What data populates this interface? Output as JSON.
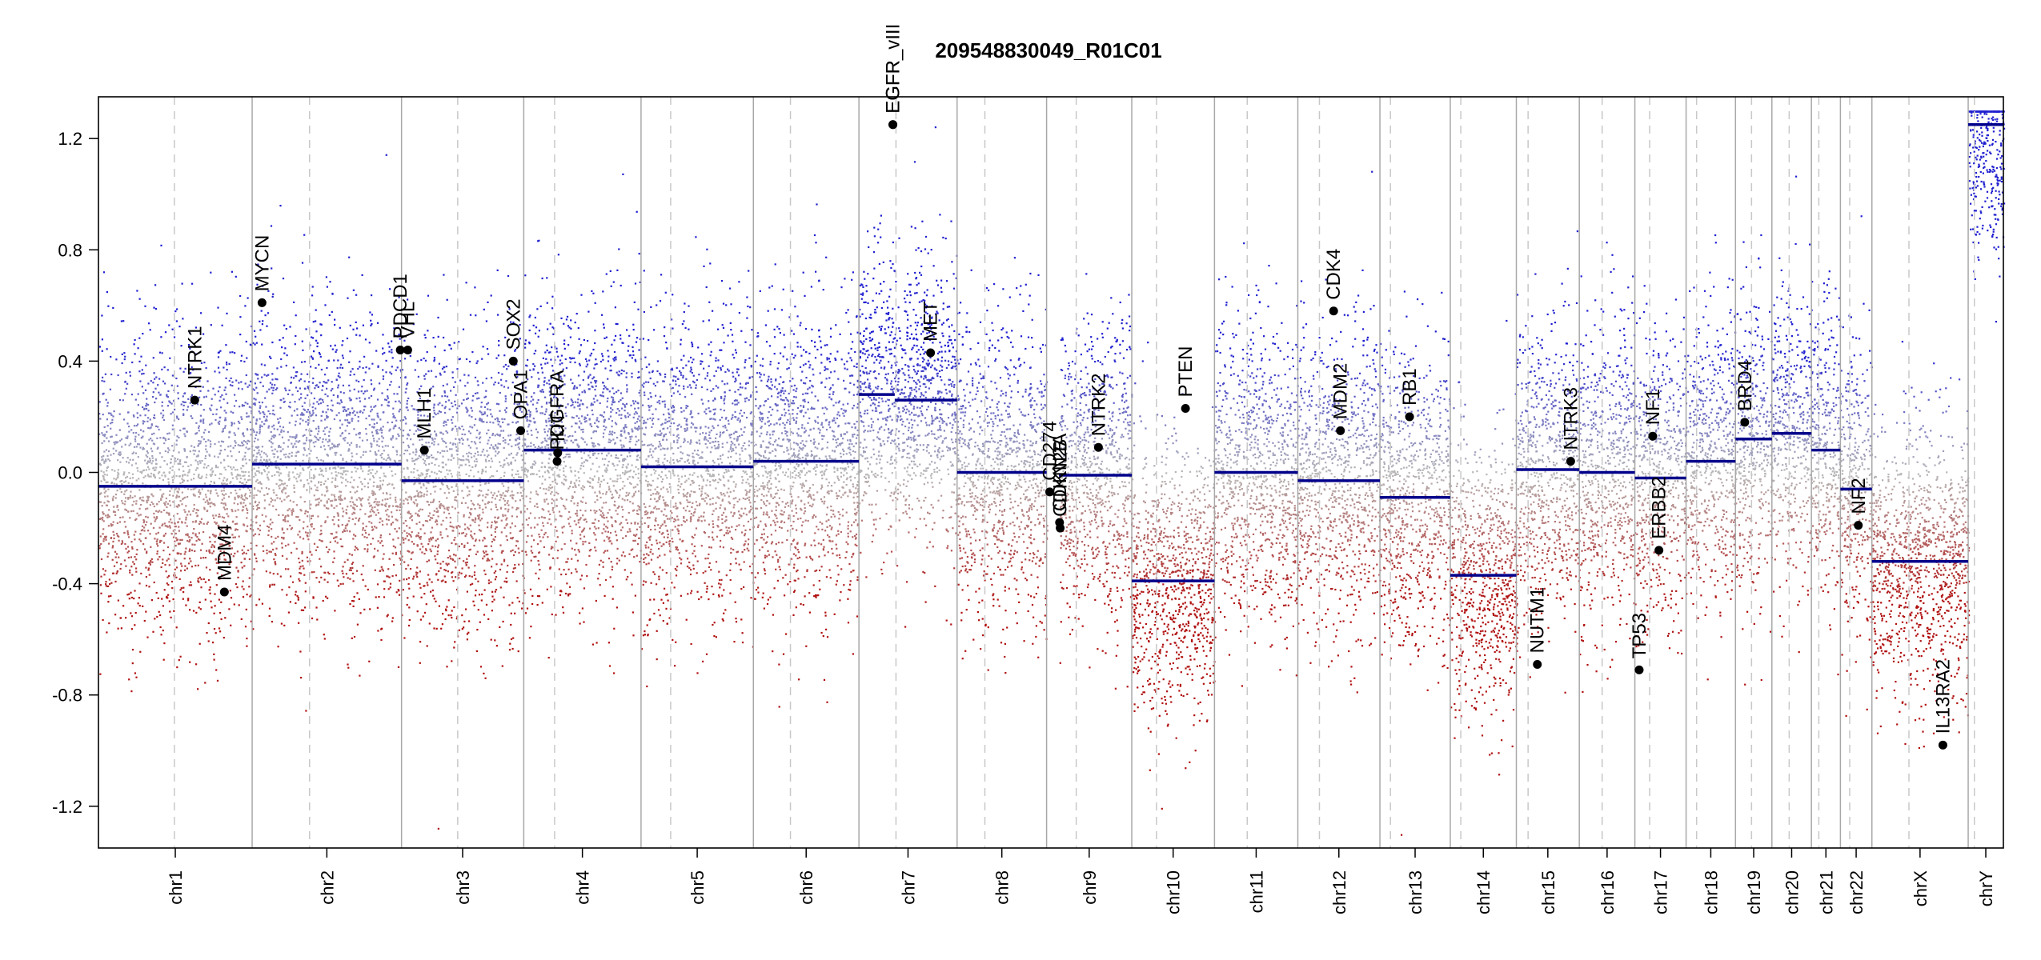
{
  "chart_data": {
    "type": "scatter",
    "title": "209548830049_R01C01",
    "xlabel": "",
    "ylabel": "",
    "ylim": [
      -1.35,
      1.35
    ],
    "yticks": [
      1.2,
      0.8,
      0.4,
      0.0,
      -0.4,
      -0.8,
      -1.2
    ],
    "ytick_labels": [
      "1.2",
      "0.8",
      "0.4",
      "0.0",
      "-0.4",
      "-0.8",
      "-1.2"
    ],
    "grid": false,
    "chromosomes": [
      {
        "name": "chr1",
        "length": 249,
        "centromere": 123
      },
      {
        "name": "chr2",
        "length": 242,
        "centromere": 93
      },
      {
        "name": "chr3",
        "length": 198,
        "centromere": 91
      },
      {
        "name": "chr4",
        "length": 190,
        "centromere": 50
      },
      {
        "name": "chr5",
        "length": 182,
        "centromere": 48
      },
      {
        "name": "chr6",
        "length": 171,
        "centromere": 60
      },
      {
        "name": "chr7",
        "length": 159,
        "centromere": 60
      },
      {
        "name": "chr8",
        "length": 145,
        "centromere": 45
      },
      {
        "name": "chr9",
        "length": 138,
        "centromere": 48
      },
      {
        "name": "chr10",
        "length": 134,
        "centromere": 40
      },
      {
        "name": "chr11",
        "length": 135,
        "centromere": 53
      },
      {
        "name": "chr12",
        "length": 133,
        "centromere": 35
      },
      {
        "name": "chr13",
        "length": 114,
        "centromere": 17
      },
      {
        "name": "chr14",
        "length": 107,
        "centromere": 17
      },
      {
        "name": "chr15",
        "length": 102,
        "centromere": 19
      },
      {
        "name": "chr16",
        "length": 90,
        "centromere": 37
      },
      {
        "name": "chr17",
        "length": 83,
        "centromere": 24
      },
      {
        "name": "chr18",
        "length": 80,
        "centromere": 17
      },
      {
        "name": "chr19",
        "length": 59,
        "centromere": 26
      },
      {
        "name": "chr20",
        "length": 64,
        "centromere": 28
      },
      {
        "name": "chr21",
        "length": 47,
        "centromere": 12
      },
      {
        "name": "chr22",
        "length": 51,
        "centromere": 15
      },
      {
        "name": "chrX",
        "length": 156,
        "centromere": 60
      },
      {
        "name": "chrY",
        "length": 57,
        "centromere": 10
      }
    ],
    "segments": [
      {
        "chrom": "chr1",
        "start": 0,
        "end": 249,
        "value": -0.05
      },
      {
        "chrom": "chr2",
        "start": 0,
        "end": 242,
        "value": 0.03
      },
      {
        "chrom": "chr3",
        "start": 0,
        "end": 198,
        "value": -0.03
      },
      {
        "chrom": "chr4",
        "start": 0,
        "end": 190,
        "value": 0.08
      },
      {
        "chrom": "chr5",
        "start": 0,
        "end": 182,
        "value": 0.02
      },
      {
        "chrom": "chr6",
        "start": 0,
        "end": 171,
        "value": 0.04
      },
      {
        "chrom": "chr7",
        "start": 0,
        "end": 58,
        "value": 0.28
      },
      {
        "chrom": "chr7",
        "start": 58,
        "end": 159,
        "value": 0.26
      },
      {
        "chrom": "chr8",
        "start": 0,
        "end": 145,
        "value": 0.0
      },
      {
        "chrom": "chr9",
        "start": 20,
        "end": 138,
        "value": -0.01
      },
      {
        "chrom": "chr10",
        "start": 0,
        "end": 134,
        "value": -0.39
      },
      {
        "chrom": "chr11",
        "start": 0,
        "end": 135,
        "value": 0.0
      },
      {
        "chrom": "chr12",
        "start": 0,
        "end": 133,
        "value": -0.03
      },
      {
        "chrom": "chr13",
        "start": 0,
        "end": 114,
        "value": -0.09
      },
      {
        "chrom": "chr14",
        "start": 0,
        "end": 107,
        "value": -0.37
      },
      {
        "chrom": "chr15",
        "start": 0,
        "end": 102,
        "value": 0.01
      },
      {
        "chrom": "chr16",
        "start": 0,
        "end": 90,
        "value": 0.0
      },
      {
        "chrom": "chr17",
        "start": 0,
        "end": 83,
        "value": -0.02
      },
      {
        "chrom": "chr18",
        "start": 0,
        "end": 80,
        "value": 0.04
      },
      {
        "chrom": "chr19",
        "start": 0,
        "end": 59,
        "value": 0.12
      },
      {
        "chrom": "chr20",
        "start": 0,
        "end": 64,
        "value": 0.14
      },
      {
        "chrom": "chr21",
        "start": 0,
        "end": 47,
        "value": 0.08
      },
      {
        "chrom": "chr22",
        "start": 0,
        "end": 51,
        "value": -0.06
      },
      {
        "chrom": "chrX",
        "start": 0,
        "end": 156,
        "value": -0.32
      },
      {
        "chrom": "chrY",
        "start": 0,
        "end": 57,
        "value": 1.25
      }
    ],
    "genes": [
      {
        "name": "NTRK1",
        "chrom": "chr1",
        "pos": 156,
        "value": 0.26
      },
      {
        "name": "MDM4",
        "chrom": "chr1",
        "pos": 204,
        "value": -0.43
      },
      {
        "name": "MYCN",
        "chrom": "chr2",
        "pos": 16,
        "value": 0.61
      },
      {
        "name": "PDCD1",
        "chrom": "chr2",
        "pos": 240,
        "value": 0.44
      },
      {
        "name": "VHL",
        "chrom": "chr3",
        "pos": 10,
        "value": 0.44
      },
      {
        "name": "MLH1",
        "chrom": "chr3",
        "pos": 37,
        "value": 0.08
      },
      {
        "name": "OPA1",
        "chrom": "chr3",
        "pos": 193,
        "value": 0.15
      },
      {
        "name": "SOX2",
        "chrom": "chr3",
        "pos": 181,
        "value": 0.4
      },
      {
        "name": "KIT",
        "chrom": "chr4",
        "pos": 55,
        "value": 0.07
      },
      {
        "name": "PDGFRA",
        "chrom": "chr4",
        "pos": 54,
        "value": 0.04
      },
      {
        "name": "EGFR",
        "chrom": "chr7",
        "pos": 55,
        "value": 1.25
      },
      {
        "name": "EGFR_vIII",
        "chrom": "chr7",
        "pos": 55,
        "value": 1.25
      },
      {
        "name": "MET",
        "chrom": "chr7",
        "pos": 116,
        "value": 0.43
      },
      {
        "name": "CD274",
        "chrom": "chr9",
        "pos": 5,
        "value": -0.07
      },
      {
        "name": "CDKN2A",
        "chrom": "chr9",
        "pos": 21,
        "value": -0.18
      },
      {
        "name": "CDKN2B",
        "chrom": "chr9",
        "pos": 22,
        "value": -0.2
      },
      {
        "name": "NTRK2",
        "chrom": "chr9",
        "pos": 84,
        "value": 0.09
      },
      {
        "name": "PTEN",
        "chrom": "chr10",
        "pos": 87,
        "value": 0.23
      },
      {
        "name": "CDK4",
        "chrom": "chr12",
        "pos": 58,
        "value": 0.58
      },
      {
        "name": "MDM2",
        "chrom": "chr12",
        "pos": 69,
        "value": 0.15
      },
      {
        "name": "RB1",
        "chrom": "chr13",
        "pos": 48,
        "value": 0.2
      },
      {
        "name": "NUTM1",
        "chrom": "chr15",
        "pos": 34,
        "value": -0.69
      },
      {
        "name": "NTRK3",
        "chrom": "chr15",
        "pos": 88,
        "value": 0.04
      },
      {
        "name": "TP53",
        "chrom": "chr17",
        "pos": 7,
        "value": -0.71
      },
      {
        "name": "NF1",
        "chrom": "chr17",
        "pos": 29,
        "value": 0.13
      },
      {
        "name": "ERBB2",
        "chrom": "chr17",
        "pos": 39,
        "value": -0.28
      },
      {
        "name": "BRD4",
        "chrom": "chr19",
        "pos": 15,
        "value": 0.18
      },
      {
        "name": "NF2",
        "chrom": "chr22",
        "pos": 29,
        "value": -0.19
      },
      {
        "name": "IL13RA2",
        "chrom": "chrX",
        "pos": 115,
        "value": -0.98
      }
    ],
    "colors": {
      "gain": "#1f1fd0",
      "loss": "#b01010",
      "neutral": "#b8b8b8",
      "segment": "#00008b",
      "gene": "#000000",
      "boundary": "#a8a8a8",
      "centromere": "#c8c8c8",
      "frame": "#000000"
    }
  }
}
